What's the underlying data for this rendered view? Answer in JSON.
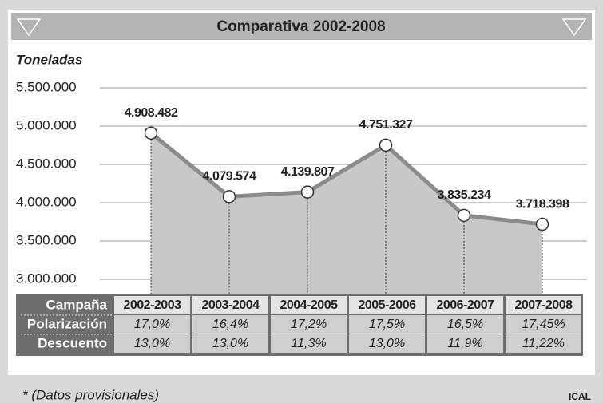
{
  "chart_data": {
    "type": "area",
    "title": "Comparativa 2002-2008",
    "y_label": "Toneladas",
    "category_label": "Campaña",
    "categories": [
      "2002-2003",
      "2003-2004",
      "2004-2005",
      "2005-2006",
      "2006-2007",
      "2007-2008"
    ],
    "values": [
      4908482,
      4079574,
      4139807,
      4751327,
      3835234,
      3718398
    ],
    "value_labels": [
      "4.908.482",
      "4.079.574",
      "4.139.807",
      "4.751.327",
      "3.835.234",
      "3.718.398"
    ],
    "line_color": "#8c8c8c",
    "fill_color": "#c8c8c8",
    "ylim": [
      3000000,
      5500000
    ],
    "yticks": [
      {
        "value": 3000000,
        "label": "3.000.000"
      },
      {
        "value": 3500000,
        "label": "3.500.000"
      },
      {
        "value": 4000000,
        "label": "4.000.000"
      },
      {
        "value": 4500000,
        "label": "4.500.000"
      },
      {
        "value": 5000000,
        "label": "5.000.000"
      },
      {
        "value": 5500000,
        "label": "5.500.000"
      }
    ],
    "grid": true,
    "table": [
      {
        "label": "Polarización",
        "cells": [
          "17,0%",
          "16,4%",
          "17,2%",
          "17,5%",
          "16,5%",
          "17,45%"
        ]
      },
      {
        "label": "Descuento",
        "cells": [
          "13,0%",
          "13,0%",
          "11,3%",
          "13,0%",
          "11,9%",
          "11,22%"
        ]
      }
    ],
    "footnote": "* (Datos provisionales)",
    "source": "ICAL"
  }
}
